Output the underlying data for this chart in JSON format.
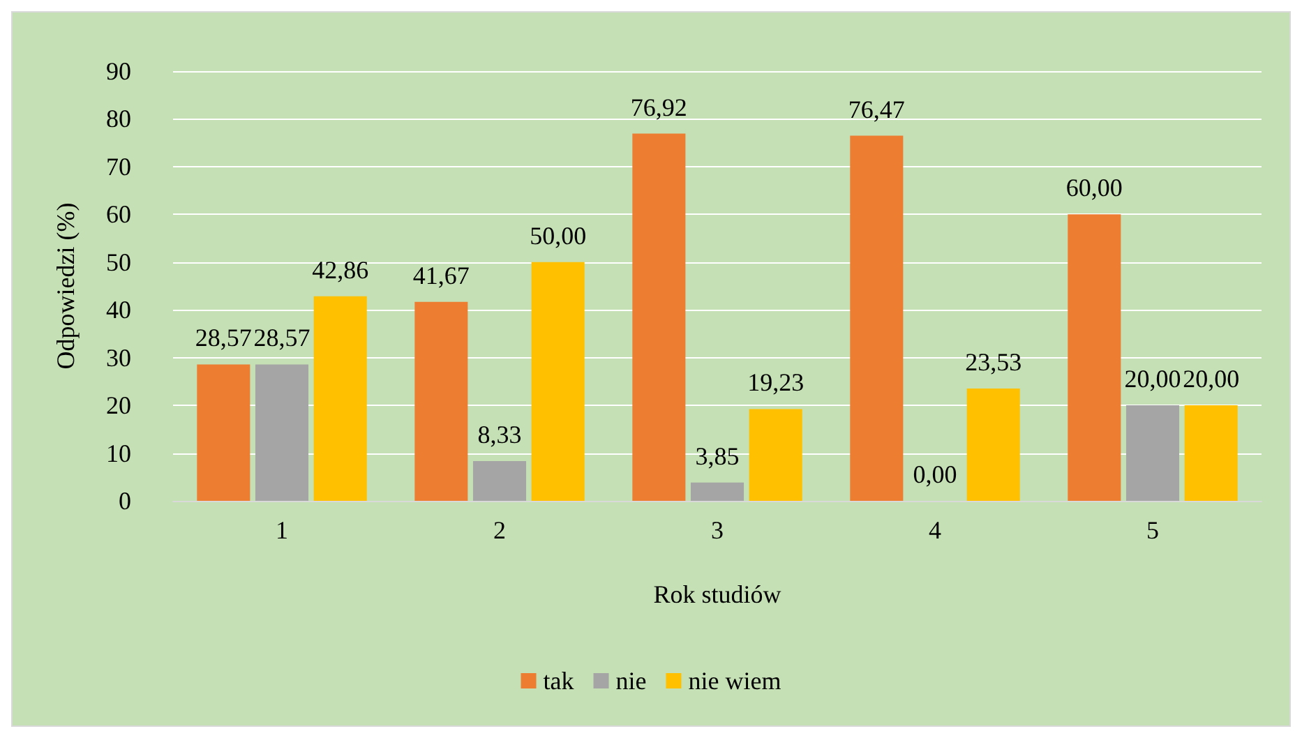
{
  "chart_data": {
    "type": "bar",
    "xlabel": "Rok studiów",
    "ylabel": "Odpowiedzi (%)",
    "categories": [
      "1",
      "2",
      "3",
      "4",
      "5"
    ],
    "series": [
      {
        "name": "tak",
        "color": "#ed7d31",
        "values": [
          28.57,
          41.67,
          76.92,
          76.47,
          60.0
        ],
        "value_labels": [
          "28,57",
          "41,67",
          "76,92",
          "76,47",
          "60,00"
        ]
      },
      {
        "name": "nie",
        "color": "#a5a5a5",
        "values": [
          28.57,
          8.33,
          3.85,
          0.0,
          20.0
        ],
        "value_labels": [
          "28,57",
          "8,33",
          "3,85",
          "0,00",
          "20,00"
        ]
      },
      {
        "name": "nie wiem",
        "color": "#ffc000",
        "values": [
          42.86,
          50.0,
          19.23,
          23.53,
          20.0
        ],
        "value_labels": [
          "42,86",
          "50,00",
          "19,23",
          "23,53",
          "20,00"
        ]
      }
    ],
    "ylim": [
      0,
      90
    ],
    "yticks": [
      0,
      10,
      20,
      30,
      40,
      50,
      60,
      70,
      80,
      90
    ],
    "grid": "y",
    "legend": "bottom"
  }
}
